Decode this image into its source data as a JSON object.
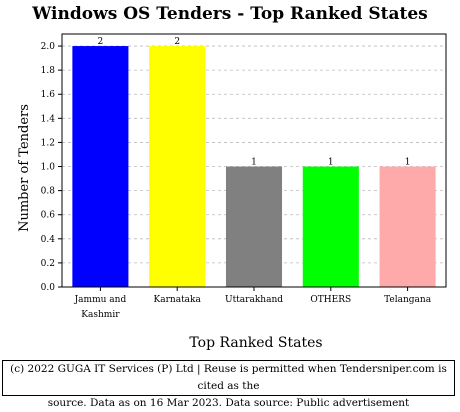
{
  "chart_data": {
    "type": "bar",
    "title": "Windows OS Tenders - Top Ranked States",
    "xlabel": "Top Ranked States",
    "ylabel": "Number of Tenders",
    "categories": [
      "Jammu and Kashmir",
      "Karnataka",
      "Uttarakhand",
      "OTHERS",
      "Telangana"
    ],
    "category_lines": [
      [
        "Jammu and",
        "Kashmir"
      ],
      [
        "Karnataka"
      ],
      [
        "Uttarakhand"
      ],
      [
        "OTHERS"
      ],
      [
        "Telangana"
      ]
    ],
    "values": [
      2,
      2,
      1,
      1,
      1
    ],
    "data_labels": [
      "2",
      "2",
      "1",
      "1",
      "1"
    ],
    "colors": [
      "#0000ff",
      "#ffff00",
      "#808080",
      "#00ff00",
      "#ffaaaa"
    ],
    "ylim": [
      0,
      2.1
    ],
    "yticks": [
      0.0,
      0.2,
      0.4,
      0.6,
      0.8,
      1.0,
      1.2,
      1.4,
      1.6,
      1.8,
      2.0
    ],
    "ytick_labels": [
      "0.0",
      "0.2",
      "0.4",
      "0.6",
      "0.8",
      "1.0",
      "1.2",
      "1.4",
      "1.6",
      "1.8",
      "2.0"
    ],
    "grid": true
  },
  "footer": {
    "line1": "(c) 2022 GUGA IT Services (P) Ltd | Reuse is permitted when Tendersniper.com is cited as the",
    "line2": "source. Data as on 16 Mar 2023. Data source: Public advertisement"
  }
}
